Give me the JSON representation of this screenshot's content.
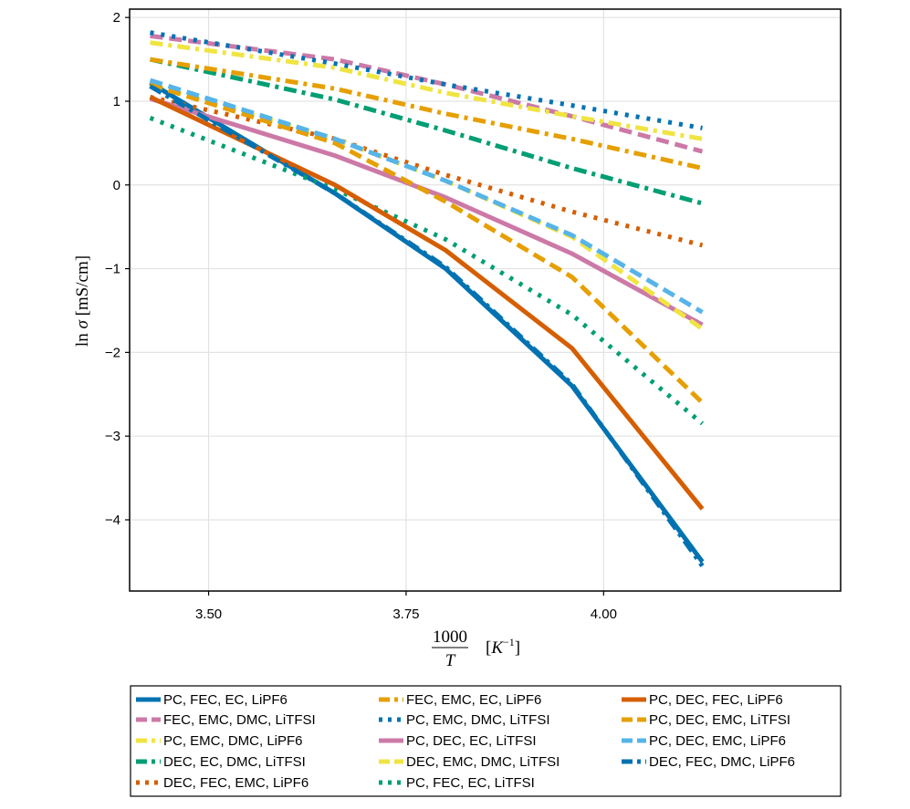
{
  "chart_data": {
    "type": "line",
    "title": "",
    "xlabel": "1000/T [K^-1]",
    "xlabel_parts": {
      "numerator": "1000",
      "denominator": "T",
      "unit_open": "[",
      "unit_K": "K",
      "unit_exp": "−1",
      "unit_close": "]"
    },
    "ylabel": "ln σ [mS/cm]",
    "ylabel_parts": {
      "ln": "ln",
      "sigma": "σ",
      "unit": "[mS/cm]"
    },
    "xlim": [
      3.4,
      4.3
    ],
    "ylim": [
      -4.85,
      2.1
    ],
    "xticks": [
      3.5,
      3.75,
      4.0
    ],
    "xtick_labels": [
      "3.50",
      "3.75",
      "4.00"
    ],
    "yticks": [
      2,
      1,
      0,
      -1,
      -2,
      -3,
      -4
    ],
    "ytick_labels": [
      "2",
      "1",
      "0",
      "−1",
      "−2",
      "−3",
      "−4"
    ],
    "grid": true,
    "legend_position": "bottom",
    "series": [
      {
        "name": "PC, FEC, EC, LiPF6",
        "color": "#0072B2",
        "style": "solid",
        "x": [
          3.426,
          3.66,
          3.8,
          3.96,
          4.125
        ],
        "y": [
          1.22,
          -0.1,
          -1.0,
          -2.4,
          -4.5
        ]
      },
      {
        "name": "FEC, EMC, DMC, LiTFSI",
        "color": "#CC79A7",
        "style": "dash",
        "x": [
          3.426,
          3.66,
          3.8,
          3.96,
          4.125
        ],
        "y": [
          1.78,
          1.5,
          1.2,
          0.82,
          0.4
        ]
      },
      {
        "name": "PC, EMC, DMC, LiPF6",
        "color": "#F0E442",
        "style": "dashdot",
        "x": [
          3.426,
          3.66,
          3.8,
          3.96,
          4.125
        ],
        "y": [
          1.7,
          1.4,
          1.1,
          0.82,
          0.55
        ]
      },
      {
        "name": "DEC, EC, DMC, LiTFSI",
        "color": "#009E73",
        "style": "dashdot",
        "x": [
          3.426,
          3.66,
          3.8,
          3.96,
          4.125
        ],
        "y": [
          1.5,
          1.02,
          0.65,
          0.2,
          -0.22
        ]
      },
      {
        "name": "DEC, FEC, EMC, LiPF6",
        "color": "#D55E00",
        "style": "dot",
        "x": [
          3.426,
          3.66,
          3.8,
          3.96,
          4.125
        ],
        "y": [
          1.05,
          0.55,
          0.12,
          -0.32,
          -0.72
        ]
      },
      {
        "name": "FEC, EMC, EC, LiPF6",
        "color": "#E69F00",
        "style": "dashdot",
        "x": [
          3.426,
          3.66,
          3.8,
          3.96,
          4.125
        ],
        "y": [
          1.5,
          1.15,
          0.85,
          0.55,
          0.2
        ]
      },
      {
        "name": "PC, EMC, DMC, LiTFSI",
        "color": "#0072B2",
        "style": "dot",
        "x": [
          3.426,
          3.66,
          3.8,
          3.96,
          4.125
        ],
        "y": [
          1.82,
          1.45,
          1.2,
          0.95,
          0.68
        ]
      },
      {
        "name": "PC, DEC, EC, LiTFSI",
        "color": "#CC79A7",
        "style": "solid",
        "x": [
          3.426,
          3.66,
          3.8,
          3.96,
          4.125
        ],
        "y": [
          1.03,
          0.35,
          -0.15,
          -0.82,
          -1.67
        ]
      },
      {
        "name": "DEC, EMC, DMC, LiTFSI",
        "color": "#F0E442",
        "style": "dash",
        "x": [
          3.426,
          3.66,
          3.8,
          3.96,
          4.125
        ],
        "y": [
          1.2,
          0.55,
          0.05,
          -0.62,
          -1.72
        ]
      },
      {
        "name": "PC, FEC, EC, LiTFSI",
        "color": "#009E73",
        "style": "dot",
        "x": [
          3.426,
          3.66,
          3.8,
          3.96,
          4.125
        ],
        "y": [
          0.8,
          -0.05,
          -0.65,
          -1.55,
          -2.85
        ]
      },
      {
        "name": "PC, DEC, FEC, LiPF6",
        "color": "#D55E00",
        "style": "solid",
        "x": [
          3.426,
          3.66,
          3.8,
          3.96,
          4.125
        ],
        "y": [
          1.05,
          0.0,
          -0.78,
          -1.95,
          -3.87
        ]
      },
      {
        "name": "PC, DEC, EMC, LiTFSI",
        "color": "#E69F00",
        "style": "dash",
        "x": [
          3.426,
          3.66,
          3.8,
          3.96,
          4.125
        ],
        "y": [
          1.2,
          0.5,
          -0.2,
          -1.1,
          -2.6
        ]
      },
      {
        "name": "PC, DEC, EMC, LiPF6",
        "color": "#56B4E9",
        "style": "dash",
        "x": [
          3.426,
          3.66,
          3.8,
          3.96,
          4.125
        ],
        "y": [
          1.25,
          0.55,
          0.05,
          -0.6,
          -1.52
        ]
      },
      {
        "name": "DEC, FEC, DMC, LiPF6",
        "color": "#0072B2",
        "style": "dashdot",
        "x": [
          3.426,
          3.66,
          3.8,
          3.96,
          4.125
        ],
        "y": [
          1.18,
          -0.1,
          -0.98,
          -2.38,
          -4.55
        ]
      }
    ]
  }
}
